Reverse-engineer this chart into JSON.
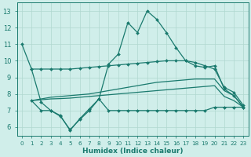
{
  "xlabel": "Humidex (Indice chaleur)",
  "xlim": [
    -0.5,
    23.5
  ],
  "ylim": [
    5.5,
    13.5
  ],
  "yticks": [
    6,
    7,
    8,
    9,
    10,
    11,
    12,
    13
  ],
  "xticks": [
    0,
    1,
    2,
    3,
    4,
    5,
    6,
    7,
    8,
    9,
    10,
    11,
    12,
    13,
    14,
    15,
    16,
    17,
    18,
    19,
    20,
    21,
    22,
    23
  ],
  "xtick_labels": [
    "0",
    "1",
    "2",
    "3",
    "4",
    "5",
    "6",
    "7",
    "8",
    "9",
    "10",
    "11",
    "12",
    "13",
    "14",
    "15",
    "16",
    "17",
    "18",
    "19",
    "20",
    "21",
    "22",
    "23"
  ],
  "bg_color": "#d0eeea",
  "line_color": "#1a7a6e",
  "grid_color": "#b0d8d0",
  "series": [
    {
      "x": [
        0,
        1,
        2,
        3,
        4,
        5,
        6,
        7,
        8,
        9,
        10,
        11,
        12,
        13,
        14,
        15,
        16,
        17,
        18,
        19,
        20,
        21,
        22,
        23
      ],
      "y": [
        11.0,
        9.5,
        7.5,
        7.0,
        6.7,
        5.8,
        6.5,
        7.1,
        7.7,
        9.8,
        10.4,
        12.3,
        11.7,
        13.0,
        12.5,
        11.7,
        10.8,
        10.0,
        9.7,
        9.6,
        9.7,
        8.3,
        7.9,
        7.2
      ],
      "marker": "D",
      "markersize": 2.0,
      "linewidth": 0.9
    },
    {
      "x": [
        1,
        2,
        3,
        4,
        5,
        6,
        7,
        8,
        9,
        10,
        11,
        12,
        13,
        14,
        15,
        16,
        17,
        18,
        19,
        20,
        21,
        22,
        23
      ],
      "y": [
        9.5,
        9.5,
        9.5,
        9.5,
        9.5,
        9.55,
        9.6,
        9.65,
        9.7,
        9.75,
        9.8,
        9.85,
        9.9,
        9.95,
        10.0,
        10.0,
        10.0,
        9.9,
        9.7,
        9.5,
        8.4,
        8.1,
        7.3
      ],
      "marker": "D",
      "markersize": 2.0,
      "linewidth": 0.9
    },
    {
      "x": [
        1,
        2,
        3,
        4,
        5,
        6,
        7,
        8,
        9,
        10,
        11,
        12,
        13,
        14,
        15,
        16,
        17,
        18,
        19,
        20,
        21,
        22,
        23
      ],
      "y": [
        7.6,
        7.7,
        7.8,
        7.85,
        7.9,
        7.95,
        8.0,
        8.1,
        8.2,
        8.3,
        8.4,
        8.5,
        8.6,
        8.7,
        8.75,
        8.8,
        8.85,
        8.9,
        8.9,
        8.9,
        8.2,
        7.9,
        7.2
      ],
      "marker": null,
      "markersize": 0,
      "linewidth": 0.9
    },
    {
      "x": [
        1,
        2,
        3,
        4,
        5,
        6,
        7,
        8,
        9,
        10,
        11,
        12,
        13,
        14,
        15,
        16,
        17,
        18,
        19,
        20,
        21,
        22,
        23
      ],
      "y": [
        7.6,
        7.65,
        7.7,
        7.72,
        7.75,
        7.8,
        7.85,
        7.9,
        7.95,
        8.0,
        8.05,
        8.1,
        8.15,
        8.2,
        8.25,
        8.3,
        8.35,
        8.4,
        8.45,
        8.5,
        7.85,
        7.6,
        7.2
      ],
      "marker": null,
      "markersize": 0,
      "linewidth": 0.9
    },
    {
      "x": [
        1,
        2,
        3,
        4,
        5,
        6,
        7,
        8,
        9,
        10,
        11,
        12,
        13,
        14,
        15,
        16,
        17,
        18,
        19,
        20,
        21,
        22,
        23
      ],
      "y": [
        7.6,
        7.0,
        7.0,
        6.65,
        5.85,
        6.45,
        7.0,
        7.7,
        7.0,
        7.0,
        7.0,
        7.0,
        7.0,
        7.0,
        7.0,
        7.0,
        7.0,
        7.0,
        7.0,
        7.2,
        7.2,
        7.2,
        7.2
      ],
      "marker": "D",
      "markersize": 2.0,
      "linewidth": 0.9
    }
  ]
}
